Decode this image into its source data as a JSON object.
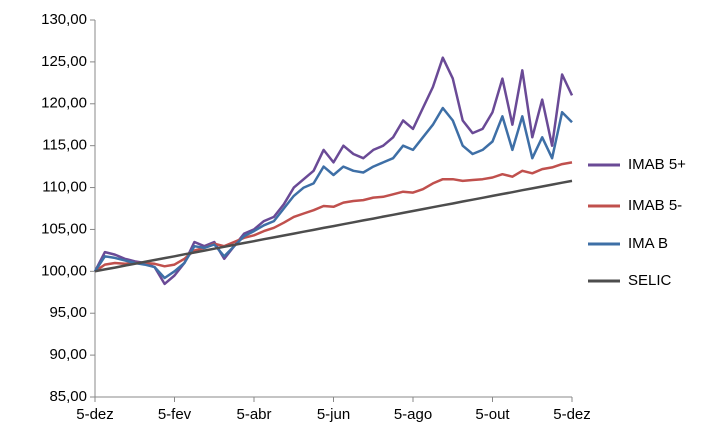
{
  "chart_data": {
    "type": "line",
    "categories": [
      "5-dez",
      null,
      null,
      null,
      null,
      null,
      null,
      null,
      "5-fev",
      null,
      null,
      null,
      null,
      null,
      null,
      null,
      "5-abr",
      null,
      null,
      null,
      null,
      null,
      null,
      null,
      "5-jun",
      null,
      null,
      null,
      null,
      null,
      null,
      null,
      "5-ago",
      null,
      null,
      null,
      null,
      null,
      null,
      null,
      "5-out",
      null,
      null,
      null,
      null,
      null,
      null,
      null,
      "5-dez"
    ],
    "series": [
      {
        "name": "IMAB 5+",
        "color": "#6a4a96",
        "values": [
          100,
          102.3,
          102,
          101.5,
          101.2,
          101,
          100.5,
          98.5,
          99.5,
          101,
          103.5,
          103,
          103.5,
          101.5,
          103,
          104.5,
          105,
          106,
          106.5,
          108,
          110,
          111,
          112,
          114.5,
          113,
          115,
          114,
          113.5,
          114.5,
          115,
          116,
          118,
          117,
          119.5,
          122,
          125.5,
          123,
          118,
          116.5,
          117,
          119,
          123,
          117.5,
          124,
          116,
          120.5,
          115,
          123.5,
          121
        ]
      },
      {
        "name": "IMAB 5-",
        "color": "#c0504d",
        "values": [
          100,
          100.8,
          101,
          100.9,
          101,
          101,
          100.9,
          100.6,
          100.8,
          101.5,
          102.5,
          102.8,
          103.3,
          103,
          103.5,
          104,
          104.3,
          104.8,
          105.2,
          105.8,
          106.5,
          106.9,
          107.3,
          107.8,
          107.7,
          108.2,
          108.4,
          108.5,
          108.8,
          108.9,
          109.2,
          109.5,
          109.4,
          109.8,
          110.5,
          111,
          111,
          110.8,
          110.9,
          111,
          111.2,
          111.6,
          111.3,
          112,
          111.7,
          112.2,
          112.4,
          112.8,
          113
        ]
      },
      {
        "name": "IMA B",
        "color": "#3e6fa6",
        "values": [
          100,
          101.8,
          101.6,
          101.3,
          101,
          100.8,
          100.5,
          99.2,
          100,
          101,
          103,
          102.8,
          103.2,
          101.8,
          103,
          104.2,
          104.8,
          105.5,
          106,
          107.5,
          109,
          110,
          110.5,
          112.5,
          111.5,
          112.5,
          112,
          111.8,
          112.5,
          113,
          113.5,
          115,
          114.5,
          116,
          117.5,
          119.5,
          118,
          115,
          114,
          114.5,
          115.5,
          118.5,
          114.5,
          118.5,
          113.5,
          116,
          113.5,
          119,
          117.8
        ]
      },
      {
        "name": "SELIC",
        "color": "#4d4d4d",
        "values": [
          100,
          100.23,
          100.45,
          100.68,
          100.9,
          101.13,
          101.35,
          101.58,
          101.8,
          102.03,
          102.25,
          102.48,
          102.7,
          102.93,
          103.15,
          103.38,
          103.6,
          103.83,
          104.05,
          104.28,
          104.5,
          104.73,
          104.95,
          105.18,
          105.4,
          105.63,
          105.85,
          106.08,
          106.3,
          106.53,
          106.75,
          106.98,
          107.2,
          107.43,
          107.65,
          107.88,
          108.1,
          108.33,
          108.55,
          108.78,
          109,
          109.23,
          109.45,
          109.68,
          109.9,
          110.13,
          110.35,
          110.58,
          110.8
        ]
      }
    ],
    "ylim": [
      85,
      130
    ],
    "yticks": [
      {
        "value": 85,
        "label": "85,00"
      },
      {
        "value": 90,
        "label": "90,00"
      },
      {
        "value": 95,
        "label": "95,00"
      },
      {
        "value": 100,
        "label": "100,00"
      },
      {
        "value": 105,
        "label": "105,00"
      },
      {
        "value": 110,
        "label": "110,00"
      },
      {
        "value": 115,
        "label": "115,00"
      },
      {
        "value": 120,
        "label": "120,00"
      },
      {
        "value": 125,
        "label": "125,00"
      },
      {
        "value": 130,
        "label": "130,00"
      }
    ],
    "grid": false,
    "legend": "right"
  }
}
